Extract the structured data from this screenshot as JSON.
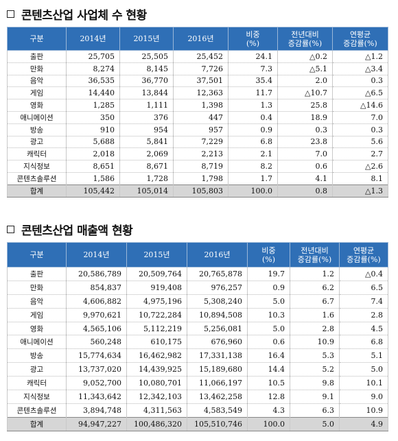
{
  "sections": [
    {
      "title": "콘텐츠산업 사업체 수 현황",
      "headers": [
        "구분",
        "2014년",
        "2015년",
        "2016년",
        "비중\n(%)",
        "전년대비\n증감률(%)",
        "연평균\n증감률(%)"
      ],
      "rows": [
        [
          "출판",
          "25,705",
          "25,505",
          "25,452",
          "24.1",
          "△0.2",
          "△1.2"
        ],
        [
          "만화",
          "8,274",
          "8,145",
          "7,726",
          "7.3",
          "△5.1",
          "△3.4"
        ],
        [
          "음악",
          "36,535",
          "36,770",
          "37,501",
          "35.4",
          "2.0",
          "0.3"
        ],
        [
          "게임",
          "14,440",
          "13,844",
          "12,363",
          "11.7",
          "△10.7",
          "△6.5"
        ],
        [
          "영화",
          "1,285",
          "1,111",
          "1,398",
          "1.3",
          "25.8",
          "△14.6"
        ],
        [
          "애니메이션",
          "350",
          "376",
          "447",
          "0.4",
          "18.9",
          "7.0"
        ],
        [
          "방송",
          "910",
          "954",
          "957",
          "0.9",
          "0.3",
          "0.3"
        ],
        [
          "광고",
          "5,688",
          "5,841",
          "7,229",
          "6.8",
          "23.8",
          "5.6"
        ],
        [
          "캐릭터",
          "2,018",
          "2,069",
          "2,213",
          "2.1",
          "7.0",
          "2.7"
        ],
        [
          "지식정보",
          "8,651",
          "8,671",
          "8,719",
          "8.2",
          "0.6",
          "△2.6"
        ],
        [
          "콘텐츠솔루션",
          "1,586",
          "1,728",
          "1,798",
          "1.7",
          "4.1",
          "8.1"
        ]
      ],
      "total": [
        "합계",
        "105,442",
        "105,014",
        "105,803",
        "100.0",
        "0.8",
        "△1.3"
      ]
    },
    {
      "title": "콘텐츠산업 매출액 현황",
      "headers": [
        "구분",
        "2014년",
        "2015년",
        "2016년",
        "비중\n(%)",
        "전년대비\n증감률(%)",
        "연평균\n증감률(%)"
      ],
      "rows": [
        [
          "출판",
          "20,586,789",
          "20,509,764",
          "20,765,878",
          "19.7",
          "1.2",
          "△0.4"
        ],
        [
          "만화",
          "854,837",
          "919,408",
          "976,257",
          "0.9",
          "6.2",
          "6.5"
        ],
        [
          "음악",
          "4,606,882",
          "4,975,196",
          "5,308,240",
          "5.0",
          "6.7",
          "7.4"
        ],
        [
          "게임",
          "9,970,621",
          "10,722,284",
          "10,894,508",
          "10.3",
          "1.6",
          "2.8"
        ],
        [
          "영화",
          "4,565,106",
          "5,112,219",
          "5,256,081",
          "5.0",
          "2.8",
          "4.5"
        ],
        [
          "애니메이션",
          "560,248",
          "610,175",
          "676,960",
          "0.6",
          "10.9",
          "6.8"
        ],
        [
          "방송",
          "15,774,634",
          "16,462,982",
          "17,331,138",
          "16.4",
          "5.3",
          "5.1"
        ],
        [
          "광고",
          "13,737,020",
          "14,439,925",
          "15,189,680",
          "14.4",
          "5.2",
          "5.0"
        ],
        [
          "캐릭터",
          "9,052,700",
          "10,080,701",
          "11,066,197",
          "10.5",
          "9.8",
          "10.1"
        ],
        [
          "지식정보",
          "11,343,642",
          "12,342,103",
          "13,462,258",
          "12.8",
          "9.1",
          "9.0"
        ],
        [
          "콘텐츠솔루션",
          "3,894,748",
          "4,311,563",
          "4,583,549",
          "4.3",
          "6.3",
          "10.9"
        ]
      ],
      "total": [
        "합계",
        "94,947,227",
        "100,486,320",
        "105,510,746",
        "100.0",
        "5.0",
        "4.9"
      ]
    }
  ]
}
